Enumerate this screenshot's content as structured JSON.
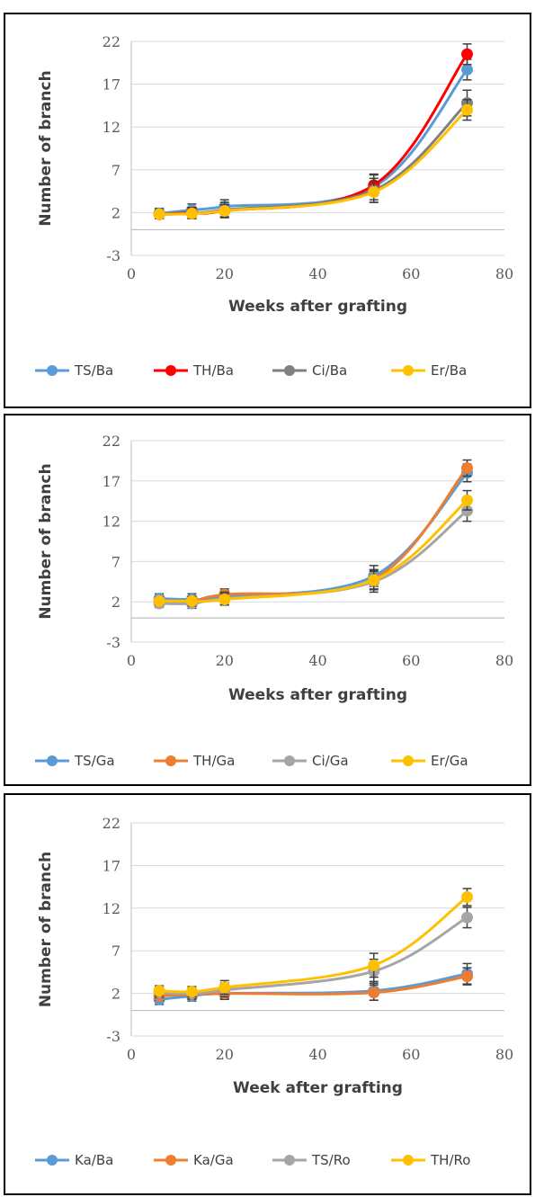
{
  "chart_data": [
    {
      "type": "line",
      "xlabel": "Weeks after grafting",
      "ylabel": "Number of branch",
      "xlim": [
        0,
        80
      ],
      "ylim": [
        -3,
        22
      ],
      "xticks": [
        0,
        20,
        40,
        60,
        80
      ],
      "yticks": [
        -3,
        2,
        7,
        12,
        17,
        22
      ],
      "grid": "horizontal",
      "legend": "bottom",
      "x": [
        6,
        13,
        20,
        52,
        72
      ],
      "series": [
        {
          "name": "TS/Ba",
          "color": "#5B9BD5",
          "values": [
            1.9,
            2.3,
            2.7,
            5.0,
            18.7
          ],
          "errors": [
            0.6,
            0.7,
            0.8,
            1.5,
            1.2
          ]
        },
        {
          "name": "TH/Ba",
          "color": "#FF0000",
          "values": [
            1.8,
            2.0,
            2.2,
            5.2,
            20.5
          ],
          "errors": [
            0.5,
            0.6,
            0.7,
            1.2,
            1.2
          ]
        },
        {
          "name": "Ci/Ba",
          "color": "#808080",
          "values": [
            1.8,
            1.9,
            2.3,
            4.6,
            14.8
          ],
          "errors": [
            0.5,
            0.6,
            0.9,
            1.4,
            1.5
          ]
        },
        {
          "name": "Er/Ba",
          "color": "#FFC000",
          "values": [
            1.8,
            1.9,
            2.2,
            4.4,
            14.0
          ],
          "errors": [
            0.5,
            0.6,
            0.7,
            1.2,
            1.2
          ]
        }
      ]
    },
    {
      "type": "line",
      "xlabel": "Weeks after grafting",
      "ylabel": "Number of branch",
      "xlim": [
        0,
        80
      ],
      "ylim": [
        -3,
        22
      ],
      "xticks": [
        0,
        20,
        40,
        60,
        80
      ],
      "yticks": [
        -3,
        2,
        7,
        12,
        17,
        22
      ],
      "grid": "horizontal",
      "legend": "bottom",
      "x": [
        6,
        13,
        20,
        52,
        72
      ],
      "series": [
        {
          "name": "TS/Ga",
          "color": "#5B9BD5",
          "values": [
            2.4,
            2.3,
            2.6,
            5.2,
            18.0
          ],
          "errors": [
            0.6,
            0.7,
            0.8,
            1.3,
            1.1
          ]
        },
        {
          "name": "TH/Ga",
          "color": "#ED7D31",
          "values": [
            2.0,
            2.0,
            2.9,
            4.8,
            18.6
          ],
          "errors": [
            0.5,
            0.6,
            0.7,
            1.2,
            1.0
          ]
        },
        {
          "name": "Ci/Ga",
          "color": "#A5A5A5",
          "values": [
            1.8,
            1.8,
            2.4,
            4.5,
            13.3
          ],
          "errors": [
            0.5,
            0.6,
            0.8,
            1.3,
            1.3
          ]
        },
        {
          "name": "Er/Ga",
          "color": "#FFC000",
          "values": [
            2.1,
            2.1,
            2.3,
            4.7,
            14.6
          ],
          "errors": [
            0.5,
            0.6,
            0.7,
            1.2,
            1.2
          ]
        }
      ]
    },
    {
      "type": "line",
      "xlabel": "Week after grafting",
      "ylabel": "Number of branch",
      "xlim": [
        0,
        80
      ],
      "ylim": [
        -3,
        22
      ],
      "xticks": [
        0,
        20,
        40,
        60,
        80
      ],
      "yticks": [
        -3,
        2,
        7,
        12,
        17,
        22
      ],
      "grid": "horizontal",
      "legend": "bottom",
      "x": [
        6,
        13,
        20,
        52,
        72
      ],
      "series": [
        {
          "name": "Ka/Ba",
          "color": "#5B9BD5",
          "values": [
            1.3,
            1.7,
            2.0,
            2.3,
            4.3
          ],
          "errors": [
            0.6,
            0.6,
            0.7,
            1.1,
            1.2
          ]
        },
        {
          "name": "Ka/Ga",
          "color": "#ED7D31",
          "values": [
            1.7,
            1.9,
            2.0,
            2.1,
            4.0
          ],
          "errors": [
            0.5,
            0.6,
            0.6,
            0.9,
            1.0
          ]
        },
        {
          "name": "TS/Ro",
          "color": "#A5A5A5",
          "values": [
            2.1,
            2.0,
            2.4,
            4.6,
            10.9
          ],
          "errors": [
            0.6,
            0.6,
            0.8,
            1.4,
            1.2
          ]
        },
        {
          "name": "TH/Ro",
          "color": "#FFC000",
          "values": [
            2.3,
            2.2,
            2.7,
            5.3,
            13.3
          ],
          "errors": [
            0.6,
            0.6,
            0.8,
            1.4,
            1.0
          ]
        }
      ]
    }
  ]
}
